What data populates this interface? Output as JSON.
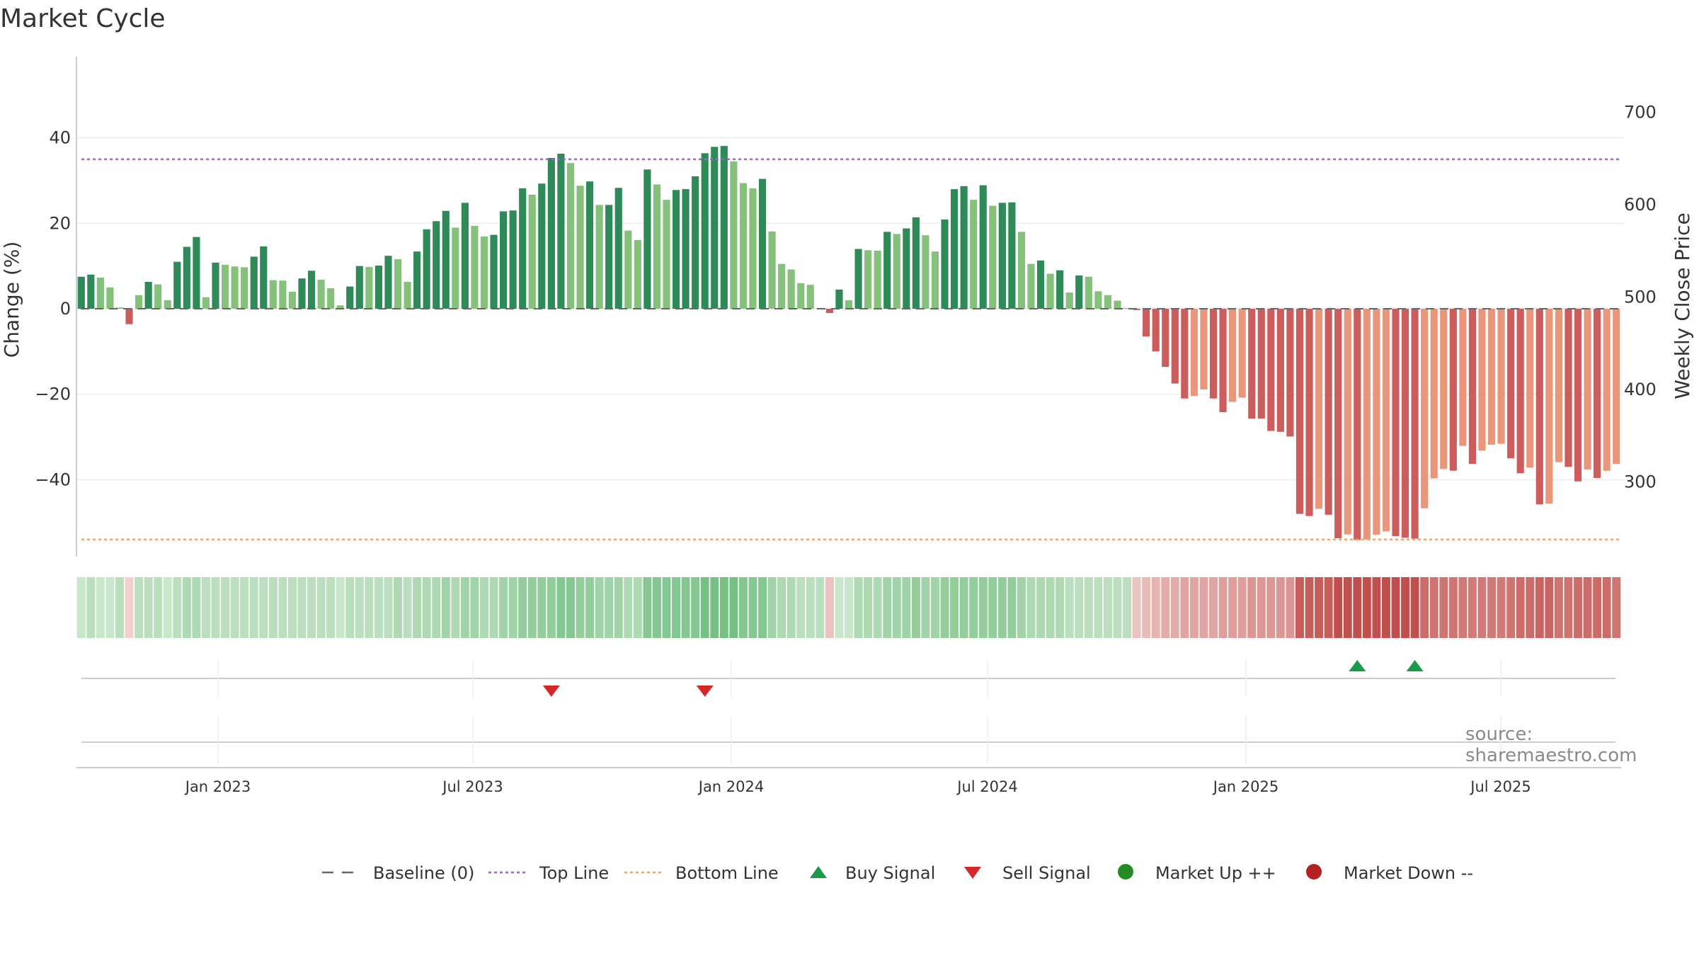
{
  "chart_data": {
    "type": "bar",
    "title": "Market Cycle",
    "source": "source: sharemaestro.com",
    "left_axis": {
      "label": "Change (%)",
      "ticks": [
        40,
        20,
        0,
        -20,
        -40
      ],
      "tick_labels": [
        "40",
        "20",
        "0",
        "−20",
        "−40"
      ],
      "range": [
        -58,
        59
      ]
    },
    "right_axis": {
      "label": "Weekly Close Price",
      "ticks": [
        700,
        600,
        500,
        400,
        300
      ],
      "tick_labels": [
        "700",
        "600",
        "500",
        "400",
        "300"
      ],
      "range": [
        219.3,
        760.3
      ]
    },
    "x_ticks": [
      "Jan 2023",
      "Jul 2023",
      "Jan 2024",
      "Jul 2024",
      "Jan 2025",
      "Jul 2025"
    ],
    "top_line": 35,
    "bottom_line": -54,
    "baseline": 0,
    "grid": true,
    "legend_position": "bottom",
    "legend": [
      {
        "label": "Baseline (0)",
        "kind": "dash"
      },
      {
        "label": "Top Line",
        "kind": "dot-purple"
      },
      {
        "label": "Bottom Line",
        "kind": "dot-orange"
      },
      {
        "label": "Buy Signal",
        "kind": "tri-up"
      },
      {
        "label": "Sell Signal",
        "kind": "tri-down"
      },
      {
        "label": "Market Up ++",
        "kind": "dot-green"
      },
      {
        "label": "Market Down --",
        "kind": "dot-red"
      }
    ],
    "colors": {
      "up_strong": "#2e8b57",
      "up_light": "#86c17c",
      "down_strong": "#cd5c5c",
      "down_light": "#e9967a",
      "top_line": "#9966cc",
      "bottom_line": "#f4a460",
      "buy": "#1a9a4b",
      "sell": "#d62728",
      "market_up": "#228b22",
      "market_down": "#b22222"
    },
    "buy_signal_weeks": [
      133,
      139
    ],
    "sell_signal_weeks": [
      49,
      65
    ],
    "values": [
      7.5,
      8,
      7.3,
      5,
      0.3,
      -3.6,
      3.2,
      6.3,
      5.7,
      2,
      11,
      14.5,
      16.8,
      2.7,
      10.8,
      10.3,
      9.9,
      9.7,
      12.2,
      14.6,
      6.7,
      6.6,
      4,
      7.1,
      8.9,
      6.8,
      4.8,
      0.8,
      5.2,
      10,
      9.8,
      10.1,
      12.4,
      11.6,
      6.3,
      13.4,
      18.6,
      20.5,
      22.9,
      19,
      24.8,
      19.4,
      16.9,
      17.3,
      22.8,
      23,
      28.2,
      26.7,
      29.3,
      35.3,
      36.3,
      34.1,
      28.8,
      29.8,
      24.3,
      24.3,
      28.3,
      18.3,
      16.1,
      32.6,
      29.1,
      25.5,
      27.8,
      28,
      31,
      36.4,
      37.9,
      38.1,
      34.5,
      29.4,
      28.2,
      30.4,
      18.1,
      10.5,
      9.2,
      6,
      5.6,
      0.2,
      -1,
      4.5,
      2,
      14,
      13.7,
      13.6,
      18,
      17.5,
      18.8,
      21.4,
      17.2,
      13.4,
      20.9,
      28,
      28.7,
      25.5,
      28.9,
      24.1,
      24.8,
      24.9,
      18,
      10.5,
      11.3,
      8.2,
      9,
      3.8,
      7.8,
      7.5,
      4.1,
      3.2,
      1.9,
      0.2,
      -0.3,
      -6.5,
      -10,
      -13.6,
      -17.5,
      -21,
      -20.4,
      -18.9,
      -21,
      -24.2,
      -21.8,
      -20.8,
      -25.7,
      -25.7,
      -28.6,
      -28.8,
      -29.9,
      -48,
      -48.5,
      -46.8,
      -48.2,
      -53.7,
      -52.8,
      -54.1,
      -54,
      -52.9,
      -52.1,
      -53.2,
      -53.6,
      -53.8,
      -46.7,
      -39.7,
      -37.5,
      -37.9,
      -32.1,
      -36.3,
      -33.2,
      -31.8,
      -31.6,
      -35,
      -38.5,
      -37.2,
      -45.8,
      -45.6,
      -35.9,
      -37,
      -40.4,
      -37.6,
      -39.6,
      -37.9,
      -36.3
    ],
    "strength": [
      0.2,
      0.3,
      0.2,
      0.2,
      0.3,
      0.1,
      0.3,
      0.3,
      0.3,
      0.2,
      0.3,
      0.4,
      0.4,
      0.3,
      0.3,
      0.3,
      0.3,
      0.3,
      0.3,
      0.3,
      0.3,
      0.3,
      0.3,
      0.3,
      0.3,
      0.3,
      0.3,
      0.2,
      0.3,
      0.3,
      0.3,
      0.3,
      0.3,
      0.4,
      0.3,
      0.4,
      0.4,
      0.4,
      0.5,
      0.4,
      0.5,
      0.5,
      0.4,
      0.4,
      0.5,
      0.5,
      0.6,
      0.6,
      0.6,
      0.6,
      0.7,
      0.7,
      0.6,
      0.6,
      0.5,
      0.5,
      0.5,
      0.4,
      0.4,
      0.7,
      0.7,
      0.7,
      0.7,
      0.7,
      0.7,
      0.8,
      0.8,
      0.8,
      0.8,
      0.7,
      0.7,
      0.7,
      0.5,
      0.4,
      0.4,
      0.3,
      0.3,
      0.3,
      0.2,
      0.2,
      0.2,
      0.4,
      0.4,
      0.4,
      0.5,
      0.5,
      0.5,
      0.6,
      0.5,
      0.5,
      0.6,
      0.6,
      0.6,
      0.6,
      0.6,
      0.6,
      0.6,
      0.6,
      0.5,
      0.4,
      0.4,
      0.4,
      0.4,
      0.3,
      0.3,
      0.3,
      0.3,
      0.3,
      0.3,
      0.3,
      0.2,
      0.25,
      0.3,
      0.35,
      0.35,
      0.4,
      0.4,
      0.4,
      0.4,
      0.45,
      0.45,
      0.45,
      0.5,
      0.5,
      0.5,
      0.5,
      0.5,
      0.9,
      0.9,
      0.9,
      0.9,
      1,
      1,
      1,
      1,
      1,
      1,
      1,
      1,
      1,
      0.8,
      0.75,
      0.75,
      0.75,
      0.7,
      0.7,
      0.7,
      0.7,
      0.7,
      0.75,
      0.8,
      0.8,
      0.85,
      0.85,
      0.75,
      0.75,
      0.8,
      0.8,
      0.8,
      0.8,
      0.75
    ]
  }
}
